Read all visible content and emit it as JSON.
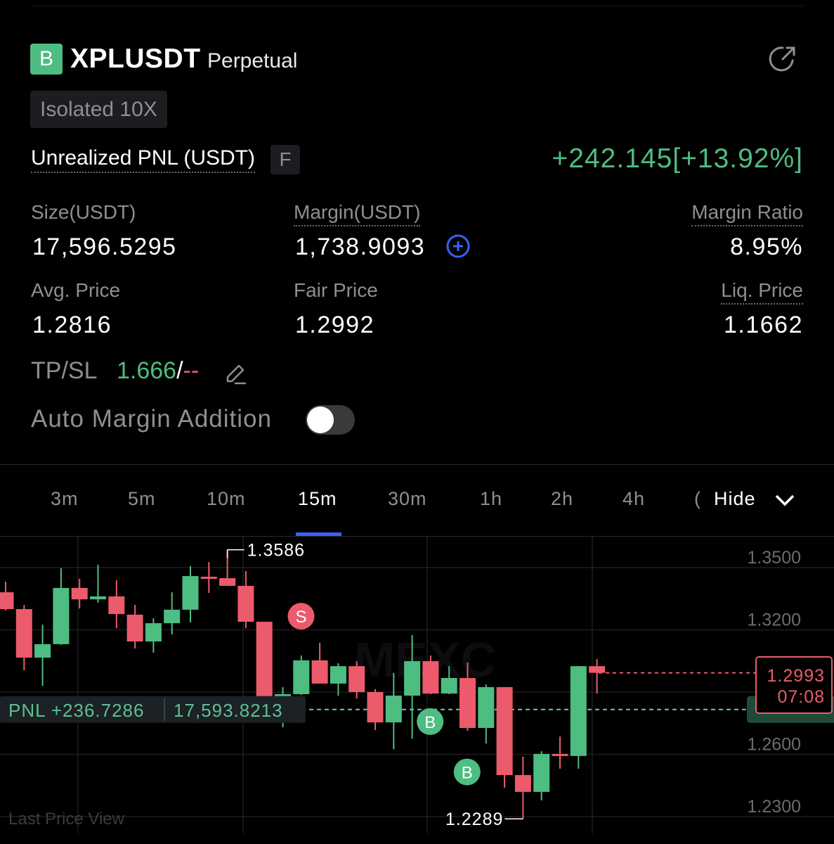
{
  "header": {
    "side_badge": "B",
    "symbol": "XPLUSDT",
    "contract_type": "Perpetual",
    "margin_mode": "Isolated 10X",
    "share_icon": "share-arrow-icon"
  },
  "pnl": {
    "label": "Unrealized PNL (USDT)",
    "badge": "F",
    "value": "+242.145[+13.92%]"
  },
  "stats": {
    "size_label": "Size(USDT)",
    "size_value": "17,596.5295",
    "margin_label": "Margin(USDT)",
    "margin_value": "1,738.9093",
    "margin_ratio_label": "Margin Ratio",
    "margin_ratio_value": "8.95%",
    "avg_price_label": "Avg. Price",
    "avg_price_value": "1.2816",
    "fair_price_label": "Fair Price",
    "fair_price_value": "1.2992",
    "liq_price_label": "Liq. Price",
    "liq_price_value": "1.1662"
  },
  "tpsl": {
    "label": "TP/SL",
    "tp": "1.666",
    "sep": "/",
    "sl": "--"
  },
  "auto_margin": {
    "label": "Auto Margin Addition",
    "enabled": false
  },
  "timeframes": {
    "items": [
      "3m",
      "5m",
      "10m",
      "15m",
      "30m",
      "1h",
      "2h",
      "4h",
      "("
    ],
    "active": "15m",
    "hide_label": "Hide"
  },
  "colors": {
    "up": "#4ebd81",
    "down": "#ec5b6b",
    "accent": "#3861f5",
    "background": "#000000"
  },
  "chart_data": {
    "type": "candlestick",
    "watermark": "MEXC",
    "y_ticks": [
      "1.3500",
      "1.3200",
      "1.2600",
      "1.2300"
    ],
    "ylim": [
      1.223,
      1.36
    ],
    "high_label": "1.3586",
    "low_label": "1.2289",
    "last_price": "1.2993",
    "countdown": "07:08",
    "position_line": {
      "pnl_label": "PNL +236.7286",
      "value_label": "17,593.8213",
      "price": 1.2816
    },
    "footer_label": "Last Price View",
    "ohlc": [
      [
        1.3381,
        1.3432,
        1.3293,
        1.33
      ],
      [
        1.33,
        1.332,
        1.3005,
        1.3066
      ],
      [
        1.3066,
        1.3225,
        1.293,
        1.3131
      ],
      [
        1.3131,
        1.3497,
        1.3127,
        1.3402
      ],
      [
        1.3402,
        1.3446,
        1.3303,
        1.3347
      ],
      [
        1.3347,
        1.3514,
        1.3331,
        1.3361
      ],
      [
        1.3361,
        1.3439,
        1.3208,
        1.3276
      ],
      [
        1.3273,
        1.332,
        1.311,
        1.3144
      ],
      [
        1.3144,
        1.3256,
        1.309,
        1.3232
      ],
      [
        1.3232,
        1.3381,
        1.3178,
        1.3297
      ],
      [
        1.3297,
        1.3507,
        1.3236,
        1.3459
      ],
      [
        1.3456,
        1.3527,
        1.3378,
        1.3449
      ],
      [
        1.3449,
        1.3586,
        1.3412,
        1.3412
      ],
      [
        1.3412,
        1.3483,
        1.3208,
        1.3239
      ],
      [
        1.3239,
        1.3239,
        1.288,
        1.288
      ],
      [
        1.288,
        1.2924,
        1.273,
        1.289
      ],
      [
        1.289,
        1.3076,
        1.2886,
        1.3053
      ],
      [
        1.3053,
        1.3137,
        1.2941,
        1.2941
      ],
      [
        1.2941,
        1.3039,
        1.2883,
        1.3025
      ],
      [
        1.3025,
        1.3049,
        1.2869,
        1.29
      ],
      [
        1.29,
        1.2914,
        1.2717,
        1.2754
      ],
      [
        1.2754,
        1.2992,
        1.2625,
        1.2883
      ],
      [
        1.2883,
        1.3175,
        1.2676,
        1.3049
      ],
      [
        1.3049,
        1.3076,
        1.289,
        1.2893
      ],
      [
        1.2893,
        1.3025,
        1.289,
        1.2968
      ],
      [
        1.2968,
        1.3042,
        1.2713,
        1.2727
      ],
      [
        1.2727,
        1.2937,
        1.2652,
        1.2924
      ],
      [
        1.2924,
        1.2924,
        1.2439,
        1.25
      ],
      [
        1.25,
        1.2588,
        1.2289,
        1.2419
      ],
      [
        1.2419,
        1.2615,
        1.2378,
        1.2602
      ],
      [
        1.2602,
        1.2686,
        1.2531,
        1.2592
      ],
      [
        1.2592,
        1.3025,
        1.2531,
        1.3025
      ],
      [
        1.3025,
        1.3059,
        1.2893,
        1.2993
      ]
    ],
    "ohlc_fields": [
      "open",
      "high",
      "low",
      "close"
    ],
    "markers": [
      {
        "label": "S",
        "candle": 15,
        "price": 1.3025,
        "side": "sell"
      },
      {
        "label": "B",
        "candle": 24,
        "price": 1.2758,
        "side": "buy"
      },
      {
        "label": "B",
        "candle": 26,
        "price": 1.2515,
        "side": "buy"
      }
    ]
  }
}
